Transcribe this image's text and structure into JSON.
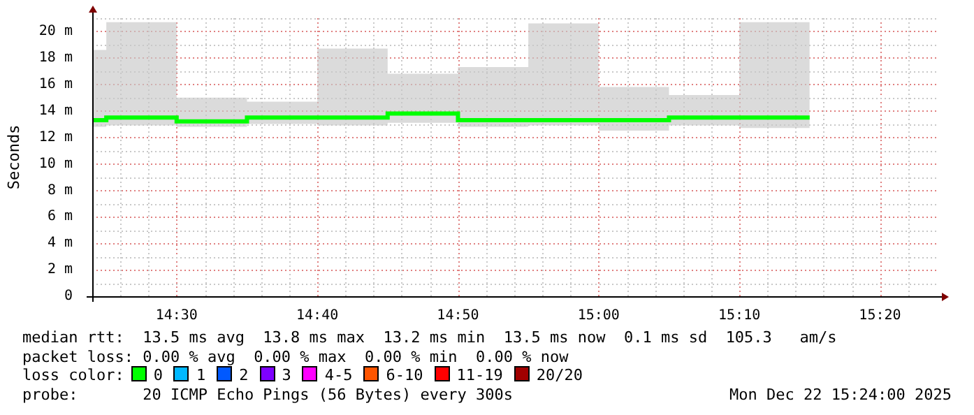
{
  "chart_data": {
    "type": "step",
    "ylabel": "Seconds",
    "legend_title": "loss color:",
    "legend": "bottom",
    "grid": true,
    "x": [
      "2025-12-22T14:24",
      "2025-12-22T14:25",
      "2025-12-22T14:30",
      "2025-12-22T14:35",
      "2025-12-22T14:40",
      "2025-12-22T14:45",
      "2025-12-22T14:50",
      "2025-12-22T14:55",
      "2025-12-22T15:00",
      "2025-12-22T15:05",
      "2025-12-22T15:10",
      "2025-12-22T15:15"
    ],
    "xlim": [
      "2025-12-22T14:24",
      "2025-12-22T15:24"
    ],
    "xticks": [
      {
        "value": "2025-12-22T14:24",
        "label": null
      },
      {
        "value": "2025-12-22T14:26",
        "label": null
      },
      {
        "value": "2025-12-22T14:28",
        "label": null
      },
      {
        "value": "2025-12-22T14:30",
        "label": "14:30"
      },
      {
        "value": "2025-12-22T14:32",
        "label": null
      },
      {
        "value": "2025-12-22T14:34",
        "label": null
      },
      {
        "value": "2025-12-22T14:36",
        "label": null
      },
      {
        "value": "2025-12-22T14:38",
        "label": null
      },
      {
        "value": "2025-12-22T14:40",
        "label": "14:40"
      },
      {
        "value": "2025-12-22T14:42",
        "label": null
      },
      {
        "value": "2025-12-22T14:44",
        "label": null
      },
      {
        "value": "2025-12-22T14:46",
        "label": null
      },
      {
        "value": "2025-12-22T14:48",
        "label": null
      },
      {
        "value": "2025-12-22T14:50",
        "label": "14:50"
      },
      {
        "value": "2025-12-22T14:52",
        "label": null
      },
      {
        "value": "2025-12-22T14:54",
        "label": null
      },
      {
        "value": "2025-12-22T14:56",
        "label": null
      },
      {
        "value": "2025-12-22T14:58",
        "label": null
      },
      {
        "value": "2025-12-22T15:00",
        "label": "15:00"
      },
      {
        "value": "2025-12-22T15:02",
        "label": null
      },
      {
        "value": "2025-12-22T15:04",
        "label": null
      },
      {
        "value": "2025-12-22T15:06",
        "label": null
      },
      {
        "value": "2025-12-22T15:08",
        "label": null
      },
      {
        "value": "2025-12-22T15:10",
        "label": "15:10"
      },
      {
        "value": "2025-12-22T15:12",
        "label": null
      },
      {
        "value": "2025-12-22T15:14",
        "label": null
      },
      {
        "value": "2025-12-22T15:16",
        "label": null
      },
      {
        "value": "2025-12-22T15:18",
        "label": null
      },
      {
        "value": "2025-12-22T15:20",
        "label": "15:20"
      },
      {
        "value": "2025-12-22T15:22",
        "label": null
      }
    ],
    "ylim": [
      0,
      21
    ],
    "yticks": [
      {
        "value": 0,
        "label": "0"
      },
      {
        "value": 1,
        "label": null
      },
      {
        "value": 2,
        "label": "2 m"
      },
      {
        "value": 3,
        "label": null
      },
      {
        "value": 4,
        "label": "4 m"
      },
      {
        "value": 5,
        "label": null
      },
      {
        "value": 6,
        "label": "6 m"
      },
      {
        "value": 7,
        "label": null
      },
      {
        "value": 8,
        "label": "8 m"
      },
      {
        "value": 9,
        "label": null
      },
      {
        "value": 10,
        "label": "10 m"
      },
      {
        "value": 11,
        "label": null
      },
      {
        "value": 12,
        "label": "12 m"
      },
      {
        "value": 13,
        "label": null
      },
      {
        "value": 14,
        "label": "14 m"
      },
      {
        "value": 15,
        "label": null
      },
      {
        "value": 16,
        "label": "16 m"
      },
      {
        "value": 17,
        "label": null
      },
      {
        "value": 18,
        "label": "18 m"
      },
      {
        "value": 19,
        "label": null
      },
      {
        "value": 20,
        "label": "20 m"
      },
      {
        "value": 21,
        "label": null
      }
    ],
    "series": [
      {
        "name": "0",
        "color": "#00ff00",
        "values": [
          13.3,
          13.5,
          13.2,
          13.5,
          13.5,
          13.8,
          13.3,
          13.3,
          13.3,
          13.5,
          13.5,
          13.5
        ],
        "lower": [
          12.8,
          12.9,
          12.8,
          13.0,
          12.9,
          13.1,
          12.8,
          12.9,
          12.5,
          12.9,
          12.7,
          12.7
        ],
        "upper": [
          18.6,
          20.7,
          15.0,
          14.7,
          18.7,
          16.8,
          17.3,
          20.6,
          15.8,
          15.2,
          20.7,
          20.7
        ]
      },
      {
        "name": "1",
        "color": "#00b8ff",
        "values": [
          null,
          null,
          null,
          null,
          null,
          null,
          null,
          null,
          null,
          null,
          null,
          null
        ]
      },
      {
        "name": "2",
        "color": "#0059ff",
        "values": [
          null,
          null,
          null,
          null,
          null,
          null,
          null,
          null,
          null,
          null,
          null,
          null
        ]
      },
      {
        "name": "3",
        "color": "#7e00ff",
        "values": [
          null,
          null,
          null,
          null,
          null,
          null,
          null,
          null,
          null,
          null,
          null,
          null
        ]
      },
      {
        "name": "4-5",
        "color": "#ff00ff",
        "values": [
          null,
          null,
          null,
          null,
          null,
          null,
          null,
          null,
          null,
          null,
          null,
          null
        ]
      },
      {
        "name": "6-10",
        "color": "#ff5500",
        "values": [
          null,
          null,
          null,
          null,
          null,
          null,
          null,
          null,
          null,
          null,
          null,
          null
        ]
      },
      {
        "name": "11-19",
        "color": "#ff0000",
        "values": [
          null,
          null,
          null,
          null,
          null,
          null,
          null,
          null,
          null,
          null,
          null,
          null
        ]
      },
      {
        "name": "20/20",
        "color": "#a10000",
        "values": [
          null,
          null,
          null,
          null,
          null,
          null,
          null,
          null,
          null,
          null,
          null,
          null
        ]
      }
    ],
    "annotations": [
      "median rtt:  13.5 ms avg  13.8 ms max  13.2 ms min  13.5 ms now  0.1 ms sd  105.3   am/s",
      "packet loss: 0.00 % avg  0.00 % max  0.00 % min  0.00 % now",
      "probe:       20 ICMP Echo Pings (56 Bytes) every 300s",
      "Mon Dec 22 15:24:00 2025"
    ]
  }
}
